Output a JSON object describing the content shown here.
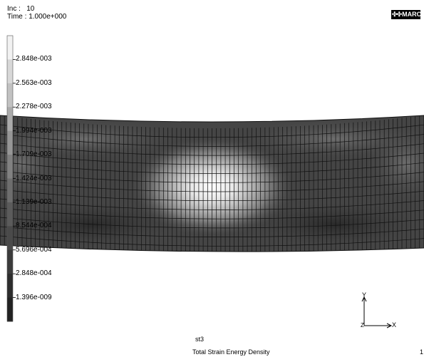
{
  "header": {
    "inc_label": "Inc :",
    "inc_value": "10",
    "time_label": "Time :",
    "time_value": "1.000e+000"
  },
  "logo": {
    "text": "MARC"
  },
  "legend": {
    "labels": [
      "2.848e-003",
      "2.563e-003",
      "2.278e-003",
      "1.994e-003",
      "1.709e-003",
      "1.424e-003",
      "1.139e-003",
      "8.544e-004",
      "5.696e-004",
      "2.848e-004",
      "1.396e-009"
    ],
    "colors": [
      "#f2f2f2",
      "#d8d8d8",
      "#c2c2c2",
      "#ababab",
      "#969696",
      "#818181",
      "#6d6d6d",
      "#5b5b5b",
      "#4a4a4a",
      "#3b3b3b",
      "#2d2d2d",
      "#222222"
    ]
  },
  "axes": {
    "x": "X",
    "y": "Y",
    "z": "Z"
  },
  "footer": {
    "model": "st3",
    "result": "Total Strain Energy Density",
    "page": "1"
  }
}
